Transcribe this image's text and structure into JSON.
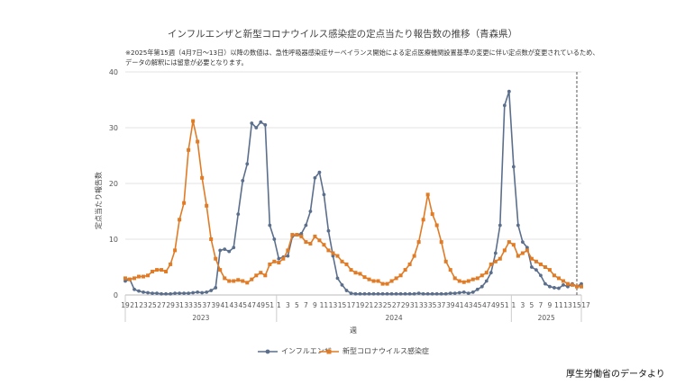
{
  "chart_data": {
    "type": "line",
    "title": "インフルエンザと新型コロナウイルス感染症の定点当たり報告数の推移（青森県）",
    "notes": [
      "※2025年第15週（4月7日～13日）以降の数値は、急性呼吸器感染症サーベイランス開始による定点医療機関設置基準の変更に伴い定点数が変更されているため、",
      "データの解釈には留意が必要となります。"
    ],
    "ylabel": "定点当たり報告数",
    "xlabel": "週",
    "ylim": [
      0,
      40
    ],
    "yticks": [
      0,
      10,
      20,
      30,
      40
    ],
    "grid": true,
    "legend_position": "bottom",
    "x_tick_labels": [
      "19",
      "21",
      "23",
      "25",
      "27",
      "29",
      "31",
      "33",
      "35",
      "37",
      "39",
      "41",
      "43",
      "45",
      "47",
      "49",
      "51",
      "1",
      "3",
      "5",
      "7",
      "9",
      "11",
      "13",
      "15",
      "17",
      "19",
      "21",
      "23",
      "25",
      "27",
      "29",
      "31",
      "33",
      "35",
      "37",
      "39",
      "41",
      "43",
      "45",
      "47",
      "49",
      "51",
      "1",
      "3",
      "5",
      "7",
      "9",
      "11",
      "13",
      "15",
      "17"
    ],
    "year_labels": [
      "2023",
      "2024",
      "2025"
    ],
    "marker_line_label": "2025年第15週",
    "series": [
      {
        "name": "インフルエンザ",
        "color": "#5b6f8c",
        "values": [
          2.5,
          2.8,
          1.0,
          0.7,
          0.5,
          0.4,
          0.3,
          0.3,
          0.2,
          0.2,
          0.2,
          0.3,
          0.3,
          0.3,
          0.3,
          0.4,
          0.5,
          0.4,
          0.5,
          0.8,
          1.3,
          8.0,
          8.2,
          7.8,
          8.5,
          14.5,
          20.5,
          23.5,
          30.8,
          30.0,
          31.0,
          30.5,
          12.5,
          10.0,
          6.5,
          6.8,
          7.0,
          10.5,
          10.8,
          11.0,
          12.5,
          15.0,
          21.0,
          22.0,
          18.0,
          11.5,
          7.0,
          3.0,
          1.8,
          0.8,
          0.3,
          0.2,
          0.2,
          0.2,
          0.2,
          0.2,
          0.2,
          0.2,
          0.2,
          0.2,
          0.2,
          0.2,
          0.2,
          0.2,
          0.2,
          0.3,
          0.2,
          0.2,
          0.2,
          0.2,
          0.2,
          0.2,
          0.3,
          0.3,
          0.4,
          0.5,
          0.3,
          0.5,
          1.0,
          1.5,
          2.5,
          4.0,
          7.5,
          12.5,
          34.0,
          36.5,
          23.0,
          12.5,
          9.5,
          8.5,
          5.0,
          4.5,
          3.5,
          2.0,
          1.5,
          1.3,
          1.2,
          1.8,
          1.5,
          2.0,
          1.5,
          2.0
        ],
        "markers": "circle"
      },
      {
        "name": "新型コロナウイルス感染症",
        "color": "#e07b26",
        "values": [
          3.0,
          2.8,
          3.0,
          3.3,
          3.3,
          3.5,
          4.2,
          4.5,
          4.5,
          4.2,
          5.5,
          8.0,
          13.5,
          16.5,
          26.0,
          31.2,
          27.5,
          21.0,
          16.0,
          10.0,
          6.5,
          4.5,
          3.0,
          2.5,
          2.5,
          2.7,
          2.5,
          2.2,
          2.8,
          3.5,
          4.0,
          3.5,
          5.5,
          6.0,
          5.8,
          6.5,
          8.0,
          10.8,
          10.8,
          10.5,
          9.5,
          9.2,
          10.5,
          9.8,
          9.0,
          8.0,
          7.5,
          7.0,
          6.0,
          5.5,
          4.5,
          4.0,
          3.8,
          3.2,
          2.8,
          2.5,
          2.5,
          2.0,
          2.0,
          2.5,
          3.0,
          3.5,
          4.5,
          5.5,
          7.0,
          9.5,
          13.5,
          18.0,
          14.5,
          12.5,
          9.5,
          6.0,
          4.5,
          3.0,
          2.5,
          2.3,
          2.5,
          2.8,
          3.0,
          3.5,
          4.0,
          5.5,
          6.0,
          6.5,
          8.0,
          9.5,
          9.0,
          7.0,
          7.5,
          8.0,
          6.5,
          6.0,
          5.5,
          5.0,
          4.5,
          3.5,
          3.0,
          2.5,
          2.0,
          1.8,
          1.5,
          1.5
        ],
        "markers": "square"
      }
    ]
  },
  "source_note": "厚生労働省のデータより"
}
